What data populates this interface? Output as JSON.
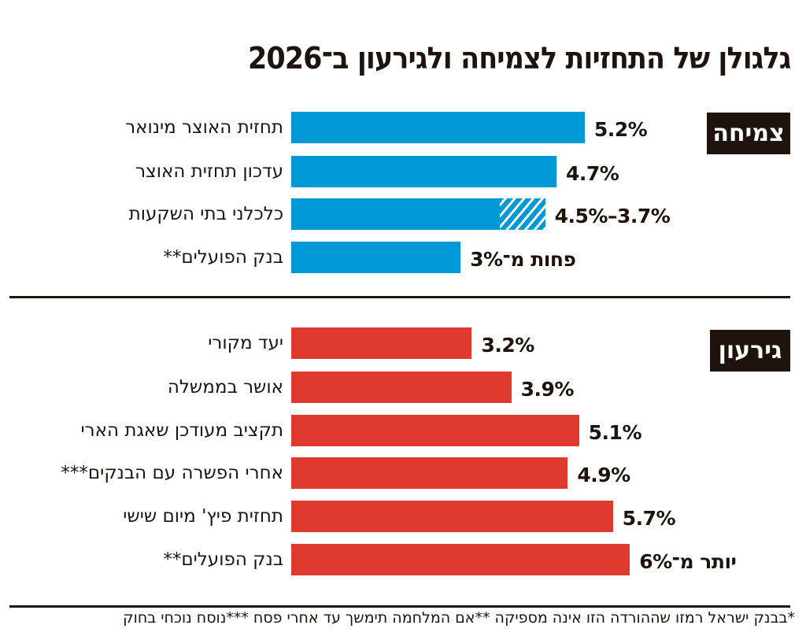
{
  "colors": {
    "growth": "#0099d6",
    "deficit": "#e03a30",
    "text": "#1f130d"
  },
  "chart_data": [
    {
      "type": "bar",
      "orientation": "horizontal",
      "title": "גלגולן של התחזיות לצמיחה ולגירעון ב־2026",
      "section": "צמיחה",
      "categories": [
        "תחזית האוצר מינואר",
        "עדכון תחזית האוצר",
        "כלכלני בתי השקעות",
        "בנק הפועלים**"
      ],
      "values": [
        5.2,
        4.7,
        4.5,
        3.0
      ],
      "range_low": [
        null,
        null,
        3.7,
        null
      ],
      "value_labels": [
        "5.2%",
        "4.7%",
        "4.5%–3.7%",
        "פחות מ־3%"
      ],
      "unit": "%"
    },
    {
      "type": "bar",
      "orientation": "horizontal",
      "section": "גירעון",
      "categories": [
        "יעד מקורי",
        "אושר בממשלה",
        "תקציב מעודכן שאגת הארי",
        "אחרי הפשרה עם הבנקים***",
        "תחזית פיץ' מיום שישי",
        "בנק הפועלים**"
      ],
      "values": [
        3.2,
        3.9,
        5.1,
        4.9,
        5.7,
        6.0
      ],
      "value_labels": [
        "3.2%",
        "3.9%",
        "5.1%",
        "4.9%",
        "5.7%",
        "יותר מ־6%"
      ],
      "unit": "%"
    }
  ],
  "footnote": "*בבנק ישראל רמזו שההורדה הזו אינה מספיקה **אם המלחמה תימשך עד אחרי פסח ***נוסח נוכחי בחוק"
}
